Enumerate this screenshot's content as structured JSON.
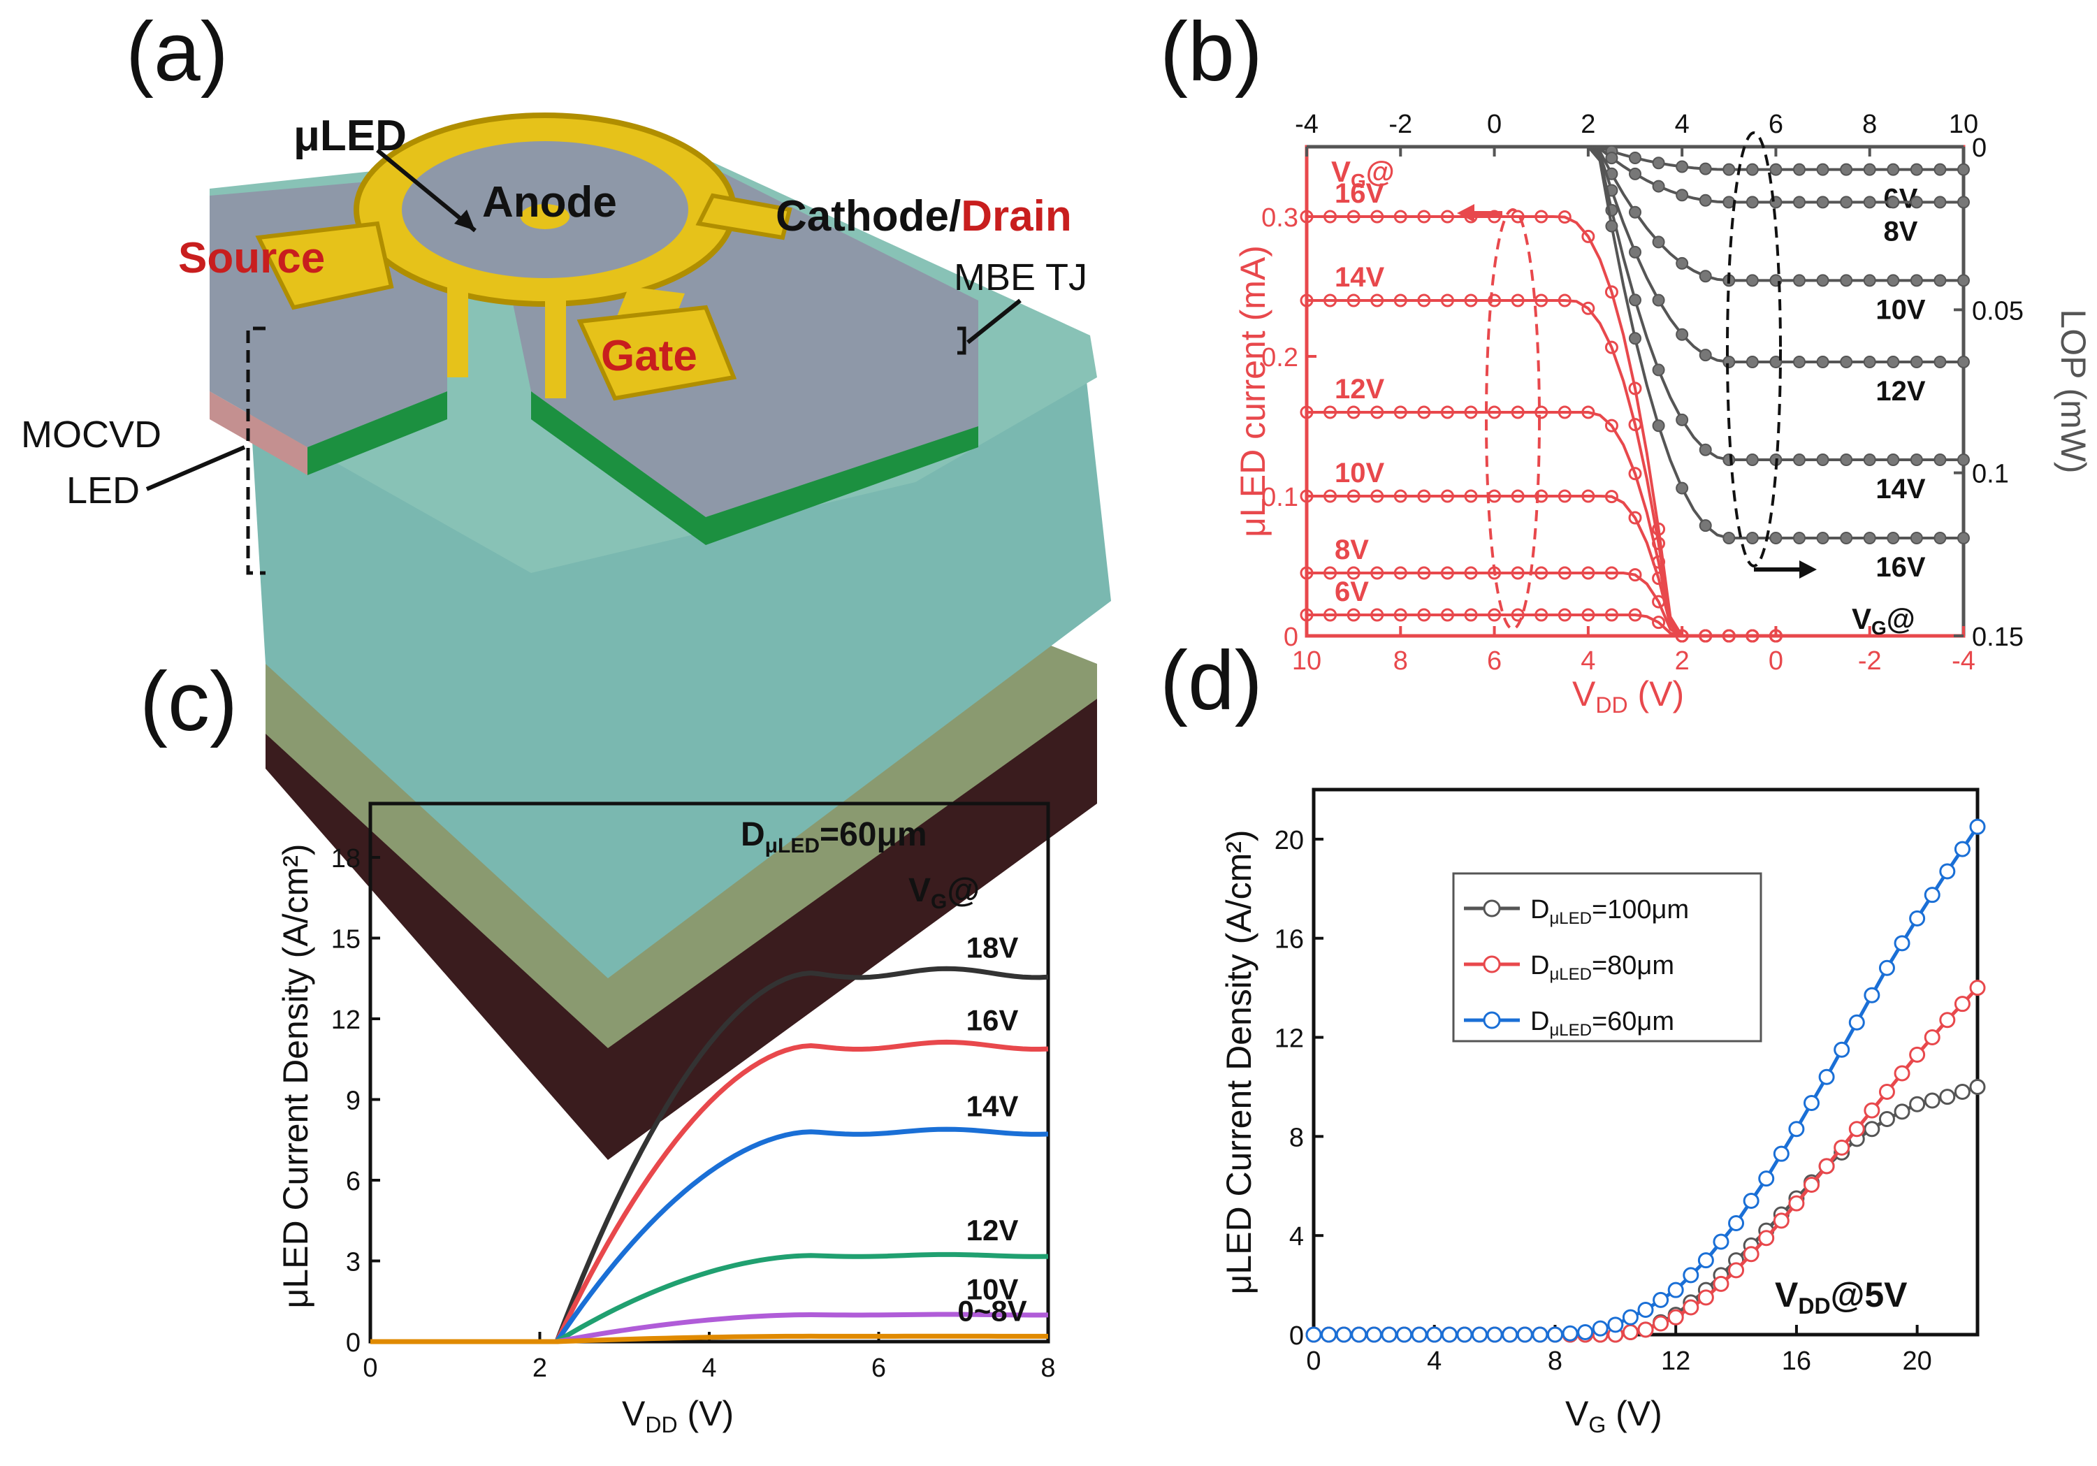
{
  "panel_labels": {
    "a": "(a)",
    "b": "(b)",
    "c": "(c)",
    "d": "(d)"
  },
  "device": {
    "labels": {
      "uled": "μLED",
      "anode": "Anode",
      "cathode": "Cathode/",
      "drain": "Drain",
      "source": "Source",
      "gate": "Gate",
      "mbe": "MBE TJ",
      "mocvd1": "MOCVD",
      "mocvd2": "LED"
    }
  },
  "colors": {
    "red": "#e8484c",
    "dark": "#555555",
    "black": "#333333",
    "blue": "#1a6fd6",
    "green": "#20a070",
    "purple": "#b05cd8",
    "orange": "#e08a00"
  },
  "chart_data": [
    {
      "panel": "b",
      "type": "line",
      "ylabel_left": "μLED current (mA)",
      "ylabel_right": "LOP (mW)",
      "xlabel": "VDD (V)",
      "xlabel_main": "V",
      "xlabel_sub": "DD",
      "xlabel_unit": " (V)",
      "x_bottom": {
        "range": [
          10,
          -4
        ],
        "ticks": [
          "10",
          "8",
          "6",
          "4",
          "2",
          "0",
          "-2",
          "-4"
        ]
      },
      "x_top": {
        "range": [
          -4,
          10
        ],
        "ticks": [
          "-4",
          "-2",
          "0",
          "2",
          "4",
          "6",
          "8",
          "10"
        ]
      },
      "y_left": {
        "range": [
          0,
          0.35
        ],
        "ticks": [
          "0",
          "0.1",
          "0.2",
          "0.3"
        ]
      },
      "y_right": {
        "range": [
          0,
          0.15
        ],
        "ticks": [
          "0",
          "0.05",
          "0.1",
          "0.15"
        ]
      },
      "current_series": [
        {
          "name": "16V",
          "plateau": 0.3,
          "knee": 4.6
        },
        {
          "name": "14V",
          "plateau": 0.24,
          "knee": 4.4
        },
        {
          "name": "12V",
          "plateau": 0.16,
          "knee": 4.0
        },
        {
          "name": "10V",
          "plateau": 0.1,
          "knee": 3.6
        },
        {
          "name": "8V",
          "plateau": 0.045,
          "knee": 3.2
        },
        {
          "name": "6V",
          "plateau": 0.015,
          "knee": 3.0
        }
      ],
      "lop_series": [
        {
          "name": "6V",
          "plateau": 0.007
        },
        {
          "name": "8V",
          "plateau": 0.017
        },
        {
          "name": "10V",
          "plateau": 0.041
        },
        {
          "name": "12V",
          "plateau": 0.066
        },
        {
          "name": "14V",
          "plateau": 0.096
        },
        {
          "name": "16V",
          "plateau": 0.12
        }
      ],
      "vg_label": "V",
      "vg_sub": "G",
      "vg_at": "@"
    },
    {
      "panel": "c",
      "type": "line",
      "title_main": "D",
      "title_sub": "μLED",
      "title_rest": "=60μm",
      "xlabel_main": "V",
      "xlabel_sub": "DD",
      "xlabel_unit": " (V)",
      "ylabel": "μLED Current Density (A/cm²)",
      "xlim": [
        0,
        8
      ],
      "ylim": [
        0,
        20
      ],
      "xticks": [
        "0",
        "2",
        "4",
        "6",
        "8"
      ],
      "yticks": [
        "0",
        "3",
        "6",
        "9",
        "12",
        "15",
        "18"
      ],
      "vg_label": "V",
      "vg_sub": "G",
      "vg_at": "@",
      "series": [
        {
          "name": "18V",
          "plateau": 13.7,
          "color": "#333333"
        },
        {
          "name": "16V",
          "plateau": 11.0,
          "color": "#e8484c"
        },
        {
          "name": "14V",
          "plateau": 7.8,
          "color": "#1a6fd6"
        },
        {
          "name": "12V",
          "plateau": 3.2,
          "color": "#20a070"
        },
        {
          "name": "10V",
          "plateau": 1.0,
          "color": "#b05cd8"
        },
        {
          "name": "0~8V",
          "plateau": 0.2,
          "color": "#e08a00"
        }
      ]
    },
    {
      "panel": "d",
      "type": "line",
      "xlabel_main": "V",
      "xlabel_sub": "G",
      "xlabel_unit": " (V)",
      "ylabel": "μLED Current Density (A/cm²)",
      "xlim": [
        0,
        22
      ],
      "ylim": [
        0,
        22
      ],
      "xticks": [
        "0",
        "4",
        "8",
        "12",
        "16",
        "20"
      ],
      "yticks": [
        "0",
        "4",
        "8",
        "12",
        "16",
        "20"
      ],
      "annotation_main": "V",
      "annotation_sub": "DD",
      "annotation_rest": "@5V",
      "series": [
        {
          "name_main": "D",
          "name_sub": "μLED",
          "name_rest": "=100μm",
          "end": 10.0,
          "color": "#555555",
          "x": [
            0,
            2,
            4,
            6,
            8,
            10,
            11,
            12,
            13,
            14,
            15,
            16,
            17,
            18,
            19,
            20,
            21,
            22
          ],
          "y": [
            0,
            0,
            0,
            0,
            0,
            0,
            0.2,
            0.8,
            1.8,
            3.0,
            4.2,
            5.5,
            6.8,
            7.9,
            8.7,
            9.3,
            9.6,
            10.0
          ]
        },
        {
          "name_main": "D",
          "name_sub": "μLED",
          "name_rest": "=80μm",
          "end": 14.0,
          "color": "#e8484c",
          "x": [
            0,
            2,
            4,
            6,
            8,
            10,
            11,
            12,
            13,
            14,
            15,
            16,
            17,
            18,
            19,
            20,
            21,
            22
          ],
          "y": [
            0,
            0,
            0,
            0,
            0,
            0,
            0.2,
            0.7,
            1.5,
            2.6,
            3.9,
            5.3,
            6.8,
            8.3,
            9.8,
            11.3,
            12.7,
            14.0
          ]
        },
        {
          "name_main": "D",
          "name_sub": "μLED",
          "name_rest": "=60μm",
          "end": 20.5,
          "color": "#1a6fd6",
          "x": [
            0,
            2,
            4,
            6,
            8,
            9,
            10,
            11,
            12,
            13,
            14,
            15,
            16,
            17,
            18,
            19,
            20,
            21,
            22
          ],
          "y": [
            0,
            0,
            0,
            0,
            0,
            0.1,
            0.4,
            1.0,
            1.8,
            3.0,
            4.5,
            6.3,
            8.3,
            10.4,
            12.6,
            14.8,
            16.8,
            18.7,
            20.5
          ]
        }
      ]
    }
  ]
}
